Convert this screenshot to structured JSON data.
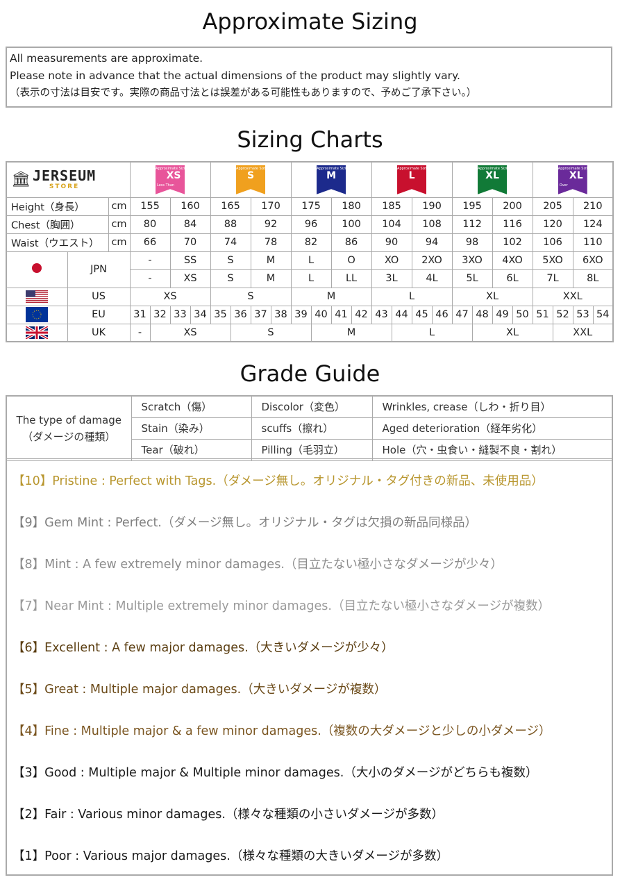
{
  "titles": {
    "sizing": "Approximate Sizing",
    "charts": "Sizing Charts",
    "grade": "Grade Guide"
  },
  "note": [
    "All measurements are approximate.",
    "Please note in advance that the actual dimensions of the product may slightly vary.",
    "（表示の寸法は目安です。実際の商品寸法とは誤差がある可能性もありますので、予めご了承下さい。）"
  ],
  "logo": {
    "text": "JERSEUM",
    "sub": "STORE"
  },
  "badges": [
    {
      "top": "Approximate Sizing",
      "pre": "Less Than",
      "size": "XS",
      "color": "#e8559a"
    },
    {
      "top": "Approximate Sizing",
      "pre": "",
      "size": "S",
      "color": "#f0a01e"
    },
    {
      "top": "Approximate Sizing",
      "pre": "",
      "size": "M",
      "color": "#1c2a8c"
    },
    {
      "top": "Approximate Sizing",
      "pre": "",
      "size": "L",
      "color": "#c8102e"
    },
    {
      "top": "Approximate Sizing",
      "pre": "",
      "size": "XL",
      "color": "#117a37"
    },
    {
      "top": "Approximate Sizing",
      "pre": "Over",
      "size": "XL",
      "color": "#6a2a9a"
    }
  ],
  "measures": [
    {
      "label": "Height（身長）",
      "unit": "cm",
      "values": [
        "155",
        "160",
        "165",
        "170",
        "175",
        "180",
        "185",
        "190",
        "195",
        "200",
        "205",
        "210"
      ]
    },
    {
      "label": "Chest（胸囲）",
      "unit": "cm",
      "values": [
        "80",
        "84",
        "88",
        "92",
        "96",
        "100",
        "104",
        "108",
        "112",
        "116",
        "120",
        "124"
      ]
    },
    {
      "label": "Waist（ウエスト）",
      "unit": "cm",
      "values": [
        "66",
        "70",
        "74",
        "78",
        "82",
        "86",
        "90",
        "94",
        "98",
        "102",
        "106",
        "110"
      ]
    }
  ],
  "jpn": {
    "label": "JPN",
    "row1": [
      "-",
      "SS",
      "S",
      "M",
      "L",
      "O",
      "XO",
      "2XO",
      "3XO",
      "4XO",
      "5XO",
      "6XO"
    ],
    "row2": [
      "-",
      "XS",
      "S",
      "M",
      "L",
      "LL",
      "3L",
      "4L",
      "5L",
      "6L",
      "7L",
      "8L"
    ]
  },
  "us": {
    "label": "US",
    "values": [
      "XS",
      "S",
      "M",
      "L",
      "XL",
      "XXL"
    ]
  },
  "eu": {
    "label": "EU",
    "values": [
      "31",
      "32",
      "33",
      "34",
      "35",
      "36",
      "37",
      "38",
      "39",
      "40",
      "41",
      "42",
      "43",
      "44",
      "45",
      "46",
      "47",
      "48",
      "49",
      "50",
      "51",
      "52",
      "53",
      "54"
    ]
  },
  "uk": {
    "label": "UK",
    "values": [
      "-",
      "XS",
      "S",
      "M",
      "L",
      "XL",
      "XXL"
    ]
  },
  "damage": {
    "title": "The type of damage",
    "title_jp": "（ダメージの種類）",
    "rows": [
      [
        "Scratch（傷）",
        "Discolor（変色）",
        "Wrinkles, crease（しわ・折り目）"
      ],
      [
        "Stain（染み）",
        "scuffs（擦れ）",
        "Aged deterioration（経年劣化）"
      ],
      [
        "Tear（破れ）",
        "Pilling（毛羽立）",
        "Hole（穴・虫食い・縫製不良・割れ）"
      ]
    ]
  },
  "grades": [
    {
      "text": "【10】Pristine : Perfect with Tags.（ダメージ無し。オリジナル・タグ付きの新品、未使用品）",
      "color": "#b8962e"
    },
    {
      "text": "【9】Gem Mint : Perfect.（ダメージ無し。オリジナル・タグは欠損の新品同様品）",
      "color": "#7f7f7f"
    },
    {
      "text": "【8】Mint : A few extremely minor damages.（目立たない極小さなダメージが少々）",
      "color": "#8c8c8c"
    },
    {
      "text": "【7】Near Mint : Multiple extremely minor damages.（目立たない極小さなダメージが複数）",
      "color": "#9a9a9a"
    },
    {
      "text": "【6】Excellent : A few major damages.（大きいダメージが少々）",
      "color": "#5a3d10"
    },
    {
      "text": "【5】Great : Multiple major damages.（大きいダメージが複数）",
      "color": "#6b4a18"
    },
    {
      "text": "【4】Fine : Multiple major & a few minor damages.（複数の大ダメージと少しの小ダメージ）",
      "color": "#7a5520"
    },
    {
      "text": "【3】Good : Multiple major & Multiple minor damages.（大小のダメージがどちらも複数）",
      "color": "#1a1a1a"
    },
    {
      "text": "【2】Fair : Various minor damages.（様々な種類の小さいダメージが多数）",
      "color": "#1a1a1a"
    },
    {
      "text": "【1】Poor : Various major damages.（様々な種類の大きいダメージが多数）",
      "color": "#1a1a1a"
    }
  ]
}
